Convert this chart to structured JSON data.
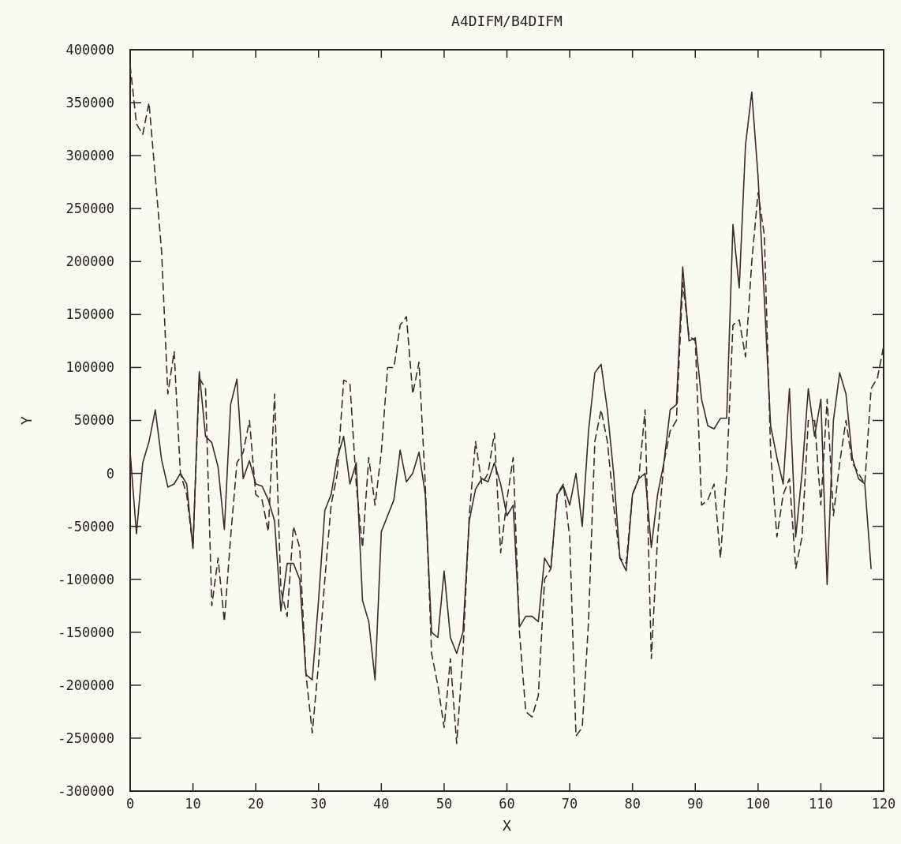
{
  "chart_data": {
    "type": "line",
    "title": "A4DIFM/B4DIFM",
    "xlabel": "X",
    "ylabel": "Y",
    "xlim": [
      0,
      120
    ],
    "xticks": [
      0,
      10,
      20,
      30,
      40,
      50,
      60,
      70,
      80,
      90,
      100,
      110,
      120
    ],
    "ylim": [
      -300000,
      400000
    ],
    "yticks": [
      -300000,
      -250000,
      -200000,
      -150000,
      -100000,
      -50000,
      0,
      50000,
      100000,
      150000,
      200000,
      250000,
      300000,
      350000,
      400000
    ],
    "grid": false,
    "x": [
      0,
      1,
      2,
      3,
      4,
      5,
      6,
      7,
      8,
      9,
      10,
      11,
      12,
      13,
      14,
      15,
      16,
      17,
      18,
      19,
      20,
      21,
      22,
      23,
      24,
      25,
      26,
      27,
      28,
      29,
      30,
      31,
      32,
      33,
      34,
      35,
      36,
      37,
      38,
      39,
      40,
      41,
      42,
      43,
      44,
      45,
      46,
      47,
      48,
      49,
      50,
      51,
      52,
      53,
      54,
      55,
      56,
      57,
      58,
      59,
      60,
      61,
      62,
      63,
      64,
      65,
      66,
      67,
      68,
      69,
      70,
      71,
      72,
      73,
      74,
      75,
      76,
      77,
      78,
      79,
      80,
      81,
      82,
      83,
      84,
      85,
      86,
      87,
      88,
      89,
      90,
      91,
      92,
      93,
      94,
      95,
      96,
      97,
      98,
      99,
      100,
      101,
      102,
      103,
      104,
      105,
      106,
      107,
      108,
      109,
      110,
      111,
      112,
      113,
      114,
      115,
      116,
      117,
      118,
      119,
      120
    ],
    "series": [
      {
        "color": "#3a2a2a",
        "line_style": "solid",
        "values": [
          20000,
          -57000,
          10000,
          30000,
          60000,
          13000,
          -13000,
          -10000,
          0,
          -10000,
          -71000,
          96000,
          35000,
          29000,
          6000,
          -53000,
          65000,
          89000,
          -5000,
          12000,
          -10000,
          -12000,
          -25000,
          -45000,
          -130000,
          -85000,
          -85000,
          -100000,
          -190000,
          -195000,
          -120000,
          -35000,
          -20000,
          15000,
          35000,
          -10000,
          10000,
          -120000,
          -140000,
          -195000,
          -55000,
          -40000,
          -25000,
          22000,
          -8000,
          0,
          20000,
          -20000,
          -150000,
          -155000,
          -92000,
          -155000,
          -170000,
          -150000,
          -45000,
          -15000,
          -5000,
          -8000,
          10000,
          -10000,
          -40000,
          -30000,
          -145000,
          -135000,
          -135000,
          -140000,
          -80000,
          -90000,
          -20000,
          -12000,
          -30000,
          0,
          -50000,
          40000,
          95000,
          103000,
          60000,
          0,
          -80000,
          -92000,
          -20000,
          -5000,
          0,
          -70000,
          -20000,
          10000,
          60000,
          65000,
          195000,
          125000,
          128000,
          70000,
          45000,
          42000,
          52000,
          52000,
          235000,
          175000,
          310000,
          360000,
          280000,
          165000,
          45000,
          15000,
          -10000,
          80000,
          -60000,
          0,
          80000,
          35000,
          70000,
          -105000,
          50000,
          95000,
          75000,
          15000,
          -5000,
          -10000,
          -90000,
          null,
          null
        ]
      },
      {
        "color": "#3a2a2a",
        "line_style": "dashed",
        "values": [
          385000,
          330000,
          320000,
          350000,
          280000,
          210000,
          75000,
          115000,
          0,
          -20000,
          -70000,
          90000,
          80000,
          -125000,
          -80000,
          -140000,
          -60000,
          10000,
          20000,
          50000,
          -20000,
          -25000,
          -55000,
          75000,
          -110000,
          -135000,
          -50000,
          -70000,
          -190000,
          -245000,
          -180000,
          -100000,
          -30000,
          0,
          88000,
          85000,
          -10000,
          -70000,
          15000,
          -30000,
          20000,
          100000,
          100000,
          140000,
          148000,
          75000,
          105000,
          -10000,
          -170000,
          -200000,
          -240000,
          -175000,
          -255000,
          -170000,
          -40000,
          30000,
          -10000,
          0,
          38000,
          -75000,
          -25000,
          15000,
          -150000,
          -225000,
          -230000,
          -210000,
          -100000,
          -90000,
          -20000,
          -10000,
          -60000,
          -248000,
          -240000,
          -140000,
          30000,
          60000,
          30000,
          -30000,
          -80000,
          -85000,
          -20000,
          -5000,
          60000,
          -175000,
          -60000,
          10000,
          40000,
          50000,
          180000,
          130000,
          125000,
          -30000,
          -25000,
          -10000,
          -80000,
          0,
          140000,
          145000,
          110000,
          200000,
          265000,
          225000,
          20000,
          -60000,
          -20000,
          -5000,
          -90000,
          -60000,
          50000,
          50000,
          -30000,
          70000,
          -40000,
          10000,
          50000,
          10000,
          0,
          -10000,
          80000,
          90000,
          120000
        ]
      }
    ]
  }
}
